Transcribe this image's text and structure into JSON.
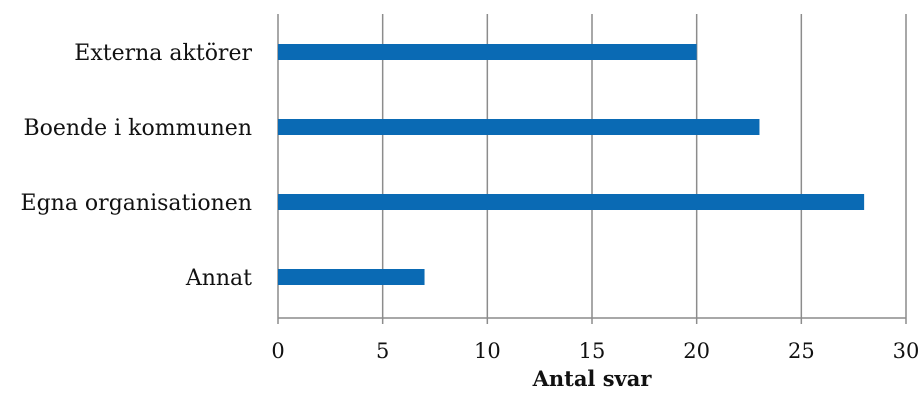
{
  "chart_data": {
    "type": "bar",
    "orientation": "horizontal",
    "categories": [
      "Externa aktörer",
      "Boende i kommunen",
      "Egna organisationen",
      "Annat"
    ],
    "values": [
      20,
      23,
      28,
      7
    ],
    "xlabel": "Antal svar",
    "xlim": [
      0,
      30
    ],
    "xticks": [
      0,
      5,
      10,
      15,
      20,
      25,
      30
    ],
    "grid": "vertical",
    "bar_color": "#0a6ab4"
  }
}
